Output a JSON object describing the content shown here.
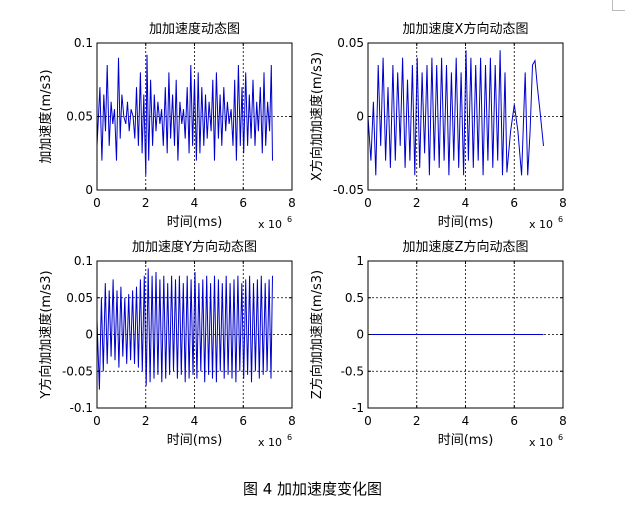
{
  "figure": {
    "caption": "图 4  加加速度变化图",
    "line_color": "#0000cc"
  },
  "chart_data": [
    {
      "type": "line",
      "title": "加加速度动态图",
      "xlabel": "时间(ms)",
      "ylabel": "加加速度(m/s3)",
      "x_exponent": "x 10",
      "x_exponent_power": "6",
      "xlim": [
        0,
        8
      ],
      "ylim": [
        0,
        0.1
      ],
      "xticks": [
        "0",
        "2",
        "4",
        "6",
        "8"
      ],
      "yticks": [
        "0",
        "0.05",
        "0.1"
      ],
      "ytick_values": [
        0,
        0.05,
        0.1
      ],
      "grid": true,
      "series": [
        {
          "x": [
            0,
            0.12,
            0.2,
            0.28,
            0.35,
            0.42,
            0.5,
            0.58,
            0.65,
            0.72,
            0.8,
            0.88,
            0.95,
            1.02,
            1.1,
            1.18,
            1.25,
            1.32,
            1.4,
            1.48,
            1.55,
            1.62,
            1.7,
            1.78,
            1.85,
            1.92,
            2.0,
            2.05,
            2.12,
            2.2,
            2.28,
            2.35,
            2.42,
            2.5,
            2.58,
            2.65,
            2.72,
            2.8,
            2.88,
            2.95,
            3.02,
            3.1,
            3.18,
            3.25,
            3.32,
            3.4,
            3.48,
            3.55,
            3.62,
            3.7,
            3.78,
            3.85,
            3.92,
            4.0,
            4.08,
            4.15,
            4.22,
            4.3,
            4.38,
            4.45,
            4.52,
            4.6,
            4.68,
            4.75,
            4.82,
            4.9,
            4.98,
            5.05,
            5.12,
            5.2,
            5.28,
            5.35,
            5.42,
            5.5,
            5.58,
            5.65,
            5.72,
            5.8,
            5.88,
            5.95,
            6.02,
            6.1,
            6.18,
            6.25,
            6.32,
            6.4,
            6.48,
            6.55,
            6.62,
            6.7,
            6.78,
            6.85,
            6.92,
            7.0,
            7.08,
            7.15,
            7.2
          ],
          "y": [
            0.03,
            0.07,
            0.02,
            0.065,
            0.04,
            0.085,
            0.03,
            0.06,
            0.045,
            0.055,
            0.02,
            0.09,
            0.035,
            0.065,
            0.05,
            0.045,
            0.06,
            0.04,
            0.055,
            0.05,
            0.035,
            0.07,
            0.03,
            0.08,
            0.025,
            0.065,
            0.01,
            0.092,
            0.02,
            0.075,
            0.03,
            0.065,
            0.04,
            0.06,
            0.045,
            0.055,
            0.03,
            0.07,
            0.025,
            0.08,
            0.035,
            0.065,
            0.03,
            0.075,
            0.02,
            0.06,
            0.045,
            0.055,
            0.035,
            0.07,
            0.025,
            0.085,
            0.03,
            0.075,
            0.02,
            0.08,
            0.025,
            0.07,
            0.03,
            0.065,
            0.035,
            0.06,
            0.04,
            0.075,
            0.02,
            0.08,
            0.035,
            0.065,
            0.03,
            0.07,
            0.04,
            0.06,
            0.045,
            0.055,
            0.03,
            0.075,
            0.02,
            0.085,
            0.03,
            0.07,
            0.025,
            0.08,
            0.03,
            0.065,
            0.035,
            0.075,
            0.03,
            0.06,
            0.04,
            0.07,
            0.025,
            0.08,
            0.03,
            0.06,
            0.04,
            0.085,
            0.02
          ]
        }
      ]
    },
    {
      "type": "line",
      "title": "加加速度X方向动态图",
      "xlabel": "时间(ms)",
      "ylabel": "X方向加加速度(m/s3)",
      "x_exponent": "x 10",
      "x_exponent_power": "6",
      "xlim": [
        0,
        8
      ],
      "ylim": [
        -0.05,
        0.05
      ],
      "xticks": [
        "0",
        "2",
        "4",
        "6",
        "8"
      ],
      "yticks": [
        "-0.05",
        "0",
        "0.05"
      ],
      "ytick_values": [
        -0.05,
        0,
        0.05
      ],
      "grid": true,
      "series": [
        {
          "x": [
            0,
            0.12,
            0.22,
            0.32,
            0.42,
            0.52,
            0.62,
            0.72,
            0.82,
            0.92,
            1.02,
            1.12,
            1.22,
            1.32,
            1.42,
            1.52,
            1.62,
            1.72,
            1.82,
            1.92,
            2.02,
            2.12,
            2.22,
            2.32,
            2.42,
            2.52,
            2.62,
            2.72,
            2.82,
            2.92,
            3.02,
            3.12,
            3.22,
            3.32,
            3.42,
            3.52,
            3.62,
            3.72,
            3.82,
            3.92,
            4.02,
            4.12,
            4.22,
            4.32,
            4.42,
            4.52,
            4.62,
            4.72,
            4.82,
            4.92,
            5.02,
            5.12,
            5.22,
            5.32,
            5.42,
            5.52,
            5.62,
            5.7,
            5.85,
            6.0,
            6.15,
            6.3,
            6.45,
            6.55,
            6.65,
            6.75,
            6.85,
            6.95,
            7.05,
            7.2
          ],
          "y": [
            0,
            -0.03,
            0.01,
            -0.04,
            0.035,
            -0.02,
            0.04,
            -0.03,
            0.02,
            -0.035,
            0.035,
            -0.03,
            0.03,
            -0.02,
            0.04,
            -0.035,
            0.025,
            -0.03,
            0.035,
            -0.04,
            0.04,
            -0.035,
            0.03,
            -0.025,
            0.035,
            -0.04,
            0.04,
            -0.03,
            0.035,
            -0.035,
            0.04,
            -0.03,
            0.035,
            -0.04,
            0.03,
            -0.03,
            0.04,
            -0.035,
            0.03,
            -0.04,
            0.045,
            -0.03,
            0.04,
            -0.035,
            0.035,
            -0.03,
            0.04,
            -0.04,
            0.035,
            -0.03,
            0.04,
            -0.035,
            0.035,
            -0.03,
            0.045,
            -0.04,
            0.03,
            -0.038,
            -0.01,
            0.008,
            -0.01,
            -0.04,
            0.03,
            -0.04,
            -0.01,
            0.035,
            0.038,
            0.02,
            0.005,
            -0.02
          ]
        }
      ]
    },
    {
      "type": "line",
      "title": "加加速度Y方向动态图",
      "xlabel": "时间(ms)",
      "ylabel": "Y方向加加速度(m/s3)",
      "x_exponent": "x 10",
      "x_exponent_power": "6",
      "xlim": [
        0,
        8
      ],
      "ylim": [
        -0.1,
        0.1
      ],
      "xticks": [
        "0",
        "2",
        "4",
        "6",
        "8"
      ],
      "yticks": [
        "-0.1",
        "-0.05",
        "0",
        "0.05",
        "0.1"
      ],
      "ytick_values": [
        -0.1,
        -0.05,
        0,
        0.05,
        0.1
      ],
      "grid": true,
      "series": [
        {
          "x": [
            0,
            0.1,
            0.18,
            0.26,
            0.34,
            0.42,
            0.5,
            0.58,
            0.66,
            0.74,
            0.82,
            0.9,
            0.98,
            1.06,
            1.14,
            1.22,
            1.3,
            1.38,
            1.46,
            1.54,
            1.62,
            1.7,
            1.78,
            1.86,
            1.94,
            2.02,
            2.1,
            2.18,
            2.26,
            2.34,
            2.42,
            2.5,
            2.58,
            2.66,
            2.74,
            2.82,
            2.9,
            2.98,
            3.06,
            3.14,
            3.22,
            3.3,
            3.38,
            3.46,
            3.54,
            3.62,
            3.7,
            3.78,
            3.86,
            3.94,
            4.02,
            4.1,
            4.18,
            4.26,
            4.34,
            4.42,
            4.5,
            4.58,
            4.66,
            4.74,
            4.82,
            4.9,
            4.98,
            5.06,
            5.14,
            5.22,
            5.3,
            5.38,
            5.46,
            5.54,
            5.62,
            5.7,
            5.78,
            5.86,
            5.94,
            6.02,
            6.1,
            6.18,
            6.26,
            6.34,
            6.42,
            6.5,
            6.58,
            6.66,
            6.74,
            6.82,
            6.9,
            6.98,
            7.06,
            7.14,
            7.2
          ],
          "y": [
            0.02,
            -0.075,
            0.05,
            -0.05,
            0.07,
            -0.04,
            0.06,
            -0.03,
            0.075,
            -0.035,
            0.06,
            -0.045,
            0.065,
            -0.03,
            0.05,
            -0.04,
            0.055,
            -0.035,
            0.06,
            -0.04,
            0.065,
            -0.045,
            0.075,
            -0.05,
            0.08,
            -0.07,
            0.09,
            -0.065,
            0.08,
            -0.06,
            0.085,
            -0.055,
            0.075,
            -0.065,
            0.08,
            -0.06,
            0.07,
            -0.055,
            0.08,
            -0.05,
            0.075,
            -0.06,
            0.08,
            -0.055,
            0.07,
            -0.065,
            0.08,
            -0.06,
            0.075,
            -0.055,
            0.085,
            -0.06,
            0.07,
            -0.05,
            0.075,
            -0.065,
            0.08,
            -0.055,
            0.07,
            -0.06,
            0.08,
            -0.065,
            0.075,
            -0.05,
            0.07,
            -0.06,
            0.08,
            -0.055,
            0.07,
            -0.06,
            0.075,
            -0.065,
            0.08,
            -0.05,
            0.07,
            -0.06,
            0.075,
            -0.055,
            0.08,
            -0.065,
            0.07,
            -0.05,
            0.075,
            -0.06,
            0.08,
            -0.055,
            0.07,
            -0.05,
            0.075,
            -0.06,
            0.08
          ]
        }
      ]
    },
    {
      "type": "line",
      "title": "加加速度Z方向动态图",
      "xlabel": "时间(ms)",
      "ylabel": "Z方向加加速度(m/s3)",
      "x_exponent": "x 10",
      "x_exponent_power": "6",
      "xlim": [
        0,
        8
      ],
      "ylim": [
        -1,
        1
      ],
      "xticks": [
        "0",
        "2",
        "4",
        "6",
        "8"
      ],
      "yticks": [
        "-1",
        "-0.5",
        "0",
        "0.5",
        "1"
      ],
      "ytick_values": [
        -1,
        -0.5,
        0,
        0.5,
        1
      ],
      "grid": true,
      "series": [
        {
          "x": [
            0,
            7.2
          ],
          "y": [
            0,
            0
          ]
        }
      ]
    }
  ]
}
